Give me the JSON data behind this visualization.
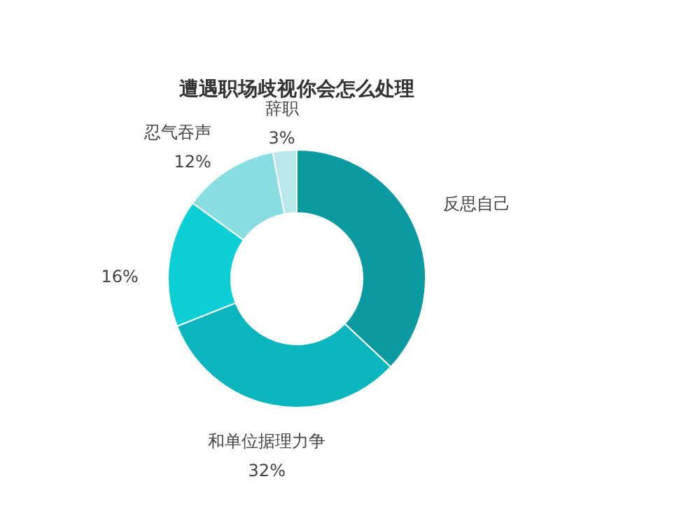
{
  "chart_data": {
    "type": "donut",
    "title": "遭遇职场歧视你会怎么处理",
    "categories": [
      "反思自己",
      "和单位据理力争",
      null,
      "忍气吞声",
      "辞职"
    ],
    "values": [
      37,
      32,
      16,
      12,
      3
    ],
    "value_labels": [
      null,
      "32%",
      "16%",
      "12%",
      "3%"
    ],
    "colors": [
      "#0a9aa0",
      "#0ab5bd",
      "#0ccfd6",
      "#88dde0",
      "#b8e8ea"
    ]
  }
}
